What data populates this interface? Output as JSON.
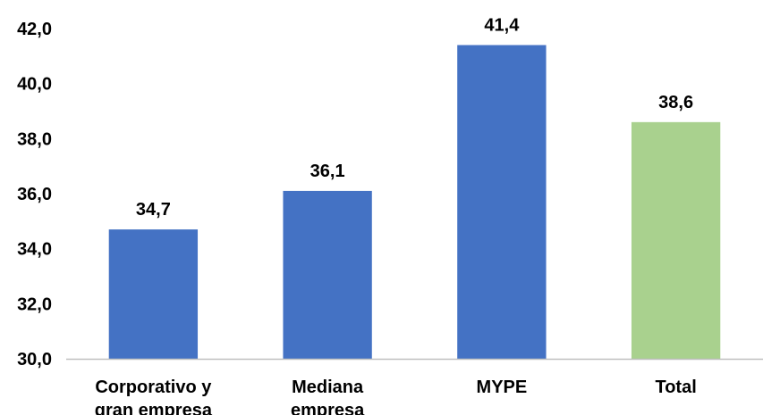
{
  "chart_data": {
    "type": "bar",
    "title": "",
    "xlabel": "",
    "ylabel": "",
    "categories": [
      [
        "Corporativo y",
        "gran empresa"
      ],
      [
        "Mediana",
        "empresa"
      ],
      [
        "MYPE"
      ],
      [
        "Total"
      ]
    ],
    "values": [
      34.7,
      36.1,
      41.4,
      38.6
    ],
    "value_labels": [
      "34,7",
      "36,1",
      "41,4",
      "38,6"
    ],
    "ylim": [
      30,
      42
    ],
    "yticks": [
      30,
      32,
      34,
      36,
      38,
      40,
      42
    ],
    "ytick_labels": [
      "30,0",
      "32,0",
      "34,0",
      "36,0",
      "38,0",
      "40,0",
      "42,0"
    ],
    "bar_colors": [
      "#4472C4",
      "#4472C4",
      "#4472C4",
      "#A9D18E"
    ],
    "axis_color": "#BFBFBF",
    "grid": false,
    "legend": "none"
  }
}
